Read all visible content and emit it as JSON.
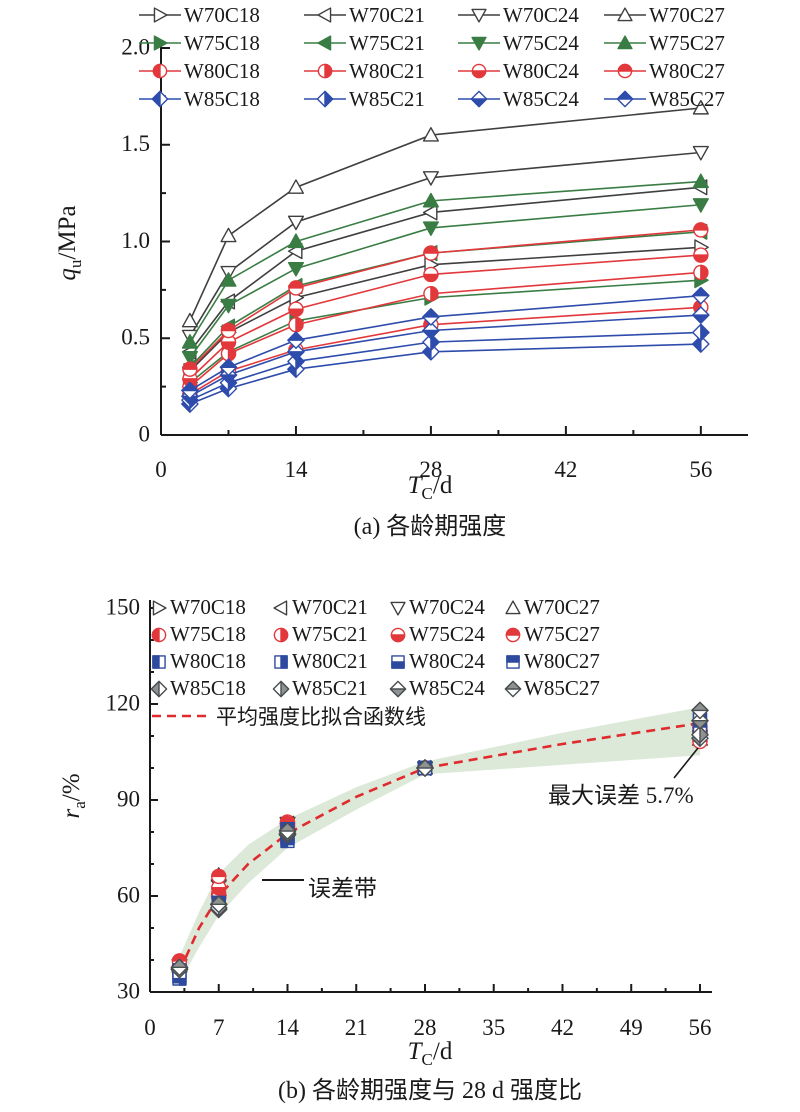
{
  "figure": {
    "caption_a": "(a) 各龄期强度",
    "caption_b": "(b) 各龄期强度与 28 d 强度比"
  },
  "chart_data": [
    {
      "id": "a",
      "type": "line",
      "title": "(a) 各龄期强度",
      "xlabel": {
        "var": "T",
        "sub": "C",
        "unit": "/d"
      },
      "ylabel": {
        "var": "q",
        "sub": "u",
        "unit": "/MPa"
      },
      "x": [
        3,
        7,
        14,
        28,
        56
      ],
      "xlim": [
        0,
        56
      ],
      "ylim": [
        0,
        2.0
      ],
      "xticks": {
        "majors": [
          0,
          14,
          28,
          42,
          56
        ],
        "labels": [
          "0",
          "14",
          "28",
          "42",
          "56"
        ],
        "minor_step": 7
      },
      "yticks": {
        "majors": [
          0,
          0.5,
          1.0,
          1.5,
          2.0
        ],
        "labels": [
          "0",
          "0.5",
          "1.0",
          "1.5",
          "2.0"
        ],
        "minor_step": 0.25
      },
      "grid": false,
      "legend_position": "top",
      "series": [
        {
          "name": "W70C18",
          "color": "#3f3f3f",
          "marker": "tri-right",
          "fill": "open",
          "values": [
            0.33,
            0.53,
            0.71,
            0.88,
            0.97
          ]
        },
        {
          "name": "W70C21",
          "color": "#3f3f3f",
          "marker": "tri-left",
          "fill": "open",
          "values": [
            0.43,
            0.69,
            0.95,
            1.15,
            1.28
          ]
        },
        {
          "name": "W70C24",
          "color": "#3f3f3f",
          "marker": "tri-down",
          "fill": "open",
          "values": [
            0.51,
            0.84,
            1.1,
            1.33,
            1.46
          ]
        },
        {
          "name": "W70C27",
          "color": "#3f3f3f",
          "marker": "tri-up",
          "fill": "open",
          "values": [
            0.59,
            1.03,
            1.28,
            1.55,
            1.69
          ]
        },
        {
          "name": "W75C18",
          "color": "#3a7d44",
          "marker": "tri-right",
          "fill": "filled",
          "values": [
            0.27,
            0.43,
            0.59,
            0.71,
            0.8
          ]
        },
        {
          "name": "W75C21",
          "color": "#3a7d44",
          "marker": "tri-left",
          "fill": "filled",
          "values": [
            0.35,
            0.56,
            0.77,
            0.94,
            1.05
          ]
        },
        {
          "name": "W75C24",
          "color": "#3a7d44",
          "marker": "tri-down",
          "fill": "filled",
          "values": [
            0.4,
            0.67,
            0.86,
            1.07,
            1.19
          ]
        },
        {
          "name": "W75C27",
          "color": "#3a7d44",
          "marker": "tri-up",
          "fill": "filled",
          "values": [
            0.48,
            0.8,
            1.0,
            1.21,
            1.31
          ]
        },
        {
          "name": "W80C18",
          "color": "#e2383c",
          "marker": "circle",
          "fill": "left",
          "values": [
            0.21,
            0.33,
            0.44,
            0.57,
            0.66
          ]
        },
        {
          "name": "W80C21",
          "color": "#e2383c",
          "marker": "circle",
          "fill": "right",
          "values": [
            0.25,
            0.42,
            0.57,
            0.73,
            0.84
          ]
        },
        {
          "name": "W80C24",
          "color": "#e2383c",
          "marker": "circle",
          "fill": "bottom",
          "values": [
            0.29,
            0.48,
            0.65,
            0.83,
            0.93
          ]
        },
        {
          "name": "W80C27",
          "color": "#e2383c",
          "marker": "circle",
          "fill": "top",
          "values": [
            0.34,
            0.54,
            0.76,
            0.94,
            1.06
          ]
        },
        {
          "name": "W85C18",
          "color": "#2e4cac",
          "marker": "diamond",
          "fill": "left",
          "values": [
            0.16,
            0.24,
            0.34,
            0.43,
            0.47
          ]
        },
        {
          "name": "W85C21",
          "color": "#2e4cac",
          "marker": "diamond",
          "fill": "right",
          "values": [
            0.18,
            0.27,
            0.38,
            0.48,
            0.53
          ]
        },
        {
          "name": "W85C24",
          "color": "#2e4cac",
          "marker": "diamond",
          "fill": "bottom",
          "values": [
            0.2,
            0.31,
            0.43,
            0.54,
            0.62
          ]
        },
        {
          "name": "W85C27",
          "color": "#2e4cac",
          "marker": "diamond",
          "fill": "top",
          "values": [
            0.23,
            0.35,
            0.49,
            0.61,
            0.72
          ]
        }
      ]
    },
    {
      "id": "b",
      "type": "scatter",
      "title": "(b) 各龄期强度与 28 d 强度比",
      "xlabel": {
        "var": "T",
        "sub": "C",
        "unit": "/d"
      },
      "ylabel": {
        "var": "r",
        "sub": "a",
        "unit": "/%"
      },
      "x": [
        3,
        7,
        14,
        28,
        56
      ],
      "xlim": [
        0,
        56
      ],
      "ylim": [
        30,
        150
      ],
      "xticks": {
        "majors": [
          0,
          7,
          14,
          21,
          28,
          35,
          42,
          49,
          56
        ],
        "labels": [
          "0",
          "7",
          "14",
          "21",
          "28",
          "35",
          "42",
          "49",
          "56"
        ],
        "minor_step": 3.5
      },
      "yticks": {
        "majors": [
          30,
          60,
          90,
          120,
          150
        ],
        "labels": [
          "30",
          "60",
          "90",
          "120",
          "150"
        ],
        "minor_step": 10
      },
      "grid": false,
      "legend_position": "inside-top",
      "series": [
        {
          "name": "W70C18",
          "color": "#3f3f3f",
          "marker": "tri-right",
          "fill": "open",
          "values": [
            37.5,
            60.2,
            80.7,
            100,
            110.2
          ]
        },
        {
          "name": "W70C21",
          "color": "#3f3f3f",
          "marker": "tri-left",
          "fill": "open",
          "values": [
            37.4,
            60.0,
            82.6,
            100,
            111.3
          ]
        },
        {
          "name": "W70C24",
          "color": "#3f3f3f",
          "marker": "tri-down",
          "fill": "open",
          "values": [
            38.3,
            63.2,
            82.7,
            100,
            109.8
          ]
        },
        {
          "name": "W70C27",
          "color": "#3f3f3f",
          "marker": "tri-up",
          "fill": "open",
          "values": [
            38.1,
            66.5,
            82.6,
            100,
            109.0
          ]
        },
        {
          "name": "W75C18",
          "color": "#e2383c",
          "marker": "circle",
          "fill": "left",
          "values": [
            38.0,
            60.6,
            83.1,
            100,
            112.7
          ]
        },
        {
          "name": "W75C21",
          "color": "#e2383c",
          "marker": "circle",
          "fill": "right",
          "values": [
            37.2,
            59.6,
            81.9,
            100,
            111.7
          ]
        },
        {
          "name": "W75C24",
          "color": "#e2383c",
          "marker": "circle",
          "fill": "bottom",
          "values": [
            37.4,
            62.6,
            80.4,
            100,
            111.2
          ]
        },
        {
          "name": "W75C27",
          "color": "#e2383c",
          "marker": "circle",
          "fill": "top",
          "values": [
            39.7,
            66.1,
            82.6,
            100,
            108.3
          ]
        },
        {
          "name": "W80C18",
          "color": "#2d4a9e",
          "marker": "square",
          "fill": "left",
          "values": [
            36.8,
            57.9,
            77.2,
            100,
            115.8
          ]
        },
        {
          "name": "W80C21",
          "color": "#2d4a9e",
          "marker": "square",
          "fill": "right",
          "values": [
            34.2,
            57.5,
            78.1,
            100,
            115.1
          ]
        },
        {
          "name": "W80C24",
          "color": "#2d4a9e",
          "marker": "square",
          "fill": "bottom",
          "values": [
            34.9,
            57.8,
            78.3,
            100,
            112.0
          ]
        },
        {
          "name": "W80C27",
          "color": "#2d4a9e",
          "marker": "square",
          "fill": "top",
          "values": [
            36.2,
            57.4,
            80.9,
            100,
            112.8
          ]
        },
        {
          "name": "W85C18",
          "color": "#8e9392",
          "stroke": "#4a4f52",
          "marker": "diamond",
          "fill": "left",
          "values": [
            37.2,
            55.8,
            79.1,
            100,
            109.3
          ]
        },
        {
          "name": "W85C21",
          "color": "#8e9392",
          "stroke": "#4a4f52",
          "marker": "diamond",
          "fill": "right",
          "values": [
            37.5,
            56.3,
            79.2,
            100,
            110.4
          ]
        },
        {
          "name": "W85C24",
          "color": "#8e9392",
          "stroke": "#4a4f52",
          "marker": "diamond",
          "fill": "bottom",
          "values": [
            37.0,
            57.4,
            79.6,
            100,
            114.8
          ]
        },
        {
          "name": "W85C27",
          "color": "#8e9392",
          "stroke": "#4a4f52",
          "marker": "diamond",
          "fill": "top",
          "values": [
            37.7,
            57.4,
            80.3,
            100,
            118.0
          ]
        }
      ],
      "fit_line": {
        "label": "平均强度比拟合函数线",
        "color": "#e02a2e",
        "style": "dashed",
        "points": [
          [
            3,
            36.5
          ],
          [
            5,
            50
          ],
          [
            7,
            60
          ],
          [
            10,
            70
          ],
          [
            14,
            79.5
          ],
          [
            21,
            91
          ],
          [
            28,
            100
          ],
          [
            42,
            107.5
          ],
          [
            56,
            114
          ]
        ]
      },
      "error_band": {
        "color": "#dce8d8",
        "upper": [
          [
            3,
            41
          ],
          [
            5,
            55
          ],
          [
            7,
            67
          ],
          [
            10,
            76
          ],
          [
            14,
            84
          ],
          [
            21,
            94
          ],
          [
            28,
            102
          ],
          [
            42,
            111
          ],
          [
            56,
            119
          ]
        ],
        "lower": [
          [
            3,
            33
          ],
          [
            5,
            44
          ],
          [
            7,
            54
          ],
          [
            10,
            64
          ],
          [
            14,
            75
          ],
          [
            21,
            87
          ],
          [
            28,
            98
          ],
          [
            42,
            101
          ],
          [
            56,
            104
          ]
        ]
      },
      "annotations": {
        "error_band_label": "误差带",
        "max_error_label": "最大误差 5.7%"
      }
    }
  ]
}
